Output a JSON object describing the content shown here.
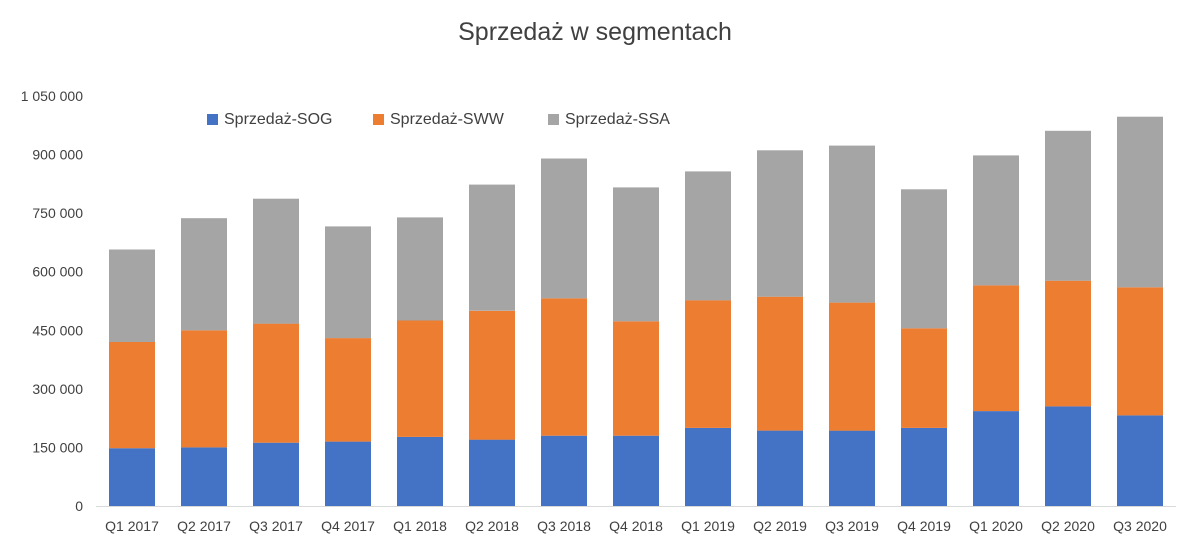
{
  "chart_data": {
    "type": "bar",
    "stacked": true,
    "title": "Sprzedaż w segmentach",
    "xlabel": "",
    "ylabel": "",
    "categories": [
      "Q1 2017",
      "Q2 2017",
      "Q3 2017",
      "Q4 2017",
      "Q1 2018",
      "Q2 2018",
      "Q3 2018",
      "Q4 2018",
      "Q1 2019",
      "Q2 2019",
      "Q3 2019",
      "Q4 2019",
      "Q1 2020",
      "Q2 2020",
      "Q3 2020"
    ],
    "series": [
      {
        "name": "Sprzedaż-SOG",
        "color": "#4472C4",
        "values": [
          148000,
          150000,
          162000,
          165000,
          177000,
          170000,
          180000,
          180000,
          200000,
          193000,
          193000,
          200000,
          243000,
          255000,
          232000
        ]
      },
      {
        "name": "Sprzedaż-SWW",
        "color": "#ED7D31",
        "values": [
          272000,
          300000,
          305000,
          265000,
          298000,
          330000,
          352000,
          293000,
          327000,
          343000,
          328000,
          255000,
          322000,
          322000,
          328000
        ]
      },
      {
        "name": "Sprzedaż-SSA",
        "color": "#A5A5A5",
        "values": [
          237000,
          287000,
          320000,
          286000,
          264000,
          323000,
          358000,
          343000,
          330000,
          375000,
          402000,
          356000,
          333000,
          384000,
          437000
        ]
      }
    ],
    "yticks": [
      "0",
      "150 000",
      "300 000",
      "450 000",
      "600 000",
      "750 000",
      "900 000",
      "1 050 000"
    ],
    "ytick_values": [
      0,
      150000,
      300000,
      450000,
      600000,
      750000,
      900000,
      1050000
    ],
    "ylim": [
      0,
      1050000
    ],
    "grid": false,
    "legend_position": "top-left-inside"
  }
}
